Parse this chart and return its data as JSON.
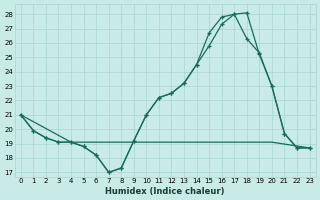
{
  "xlabel": "Humidex (Indice chaleur)",
  "bg_color": "#c8ebe8",
  "grid_color": "#a8d5d0",
  "line_color": "#1a6b5e",
  "xlim": [
    -0.5,
    23.5
  ],
  "ylim": [
    16.7,
    28.7
  ],
  "yticks": [
    17,
    18,
    19,
    20,
    21,
    22,
    23,
    24,
    25,
    26,
    27,
    28
  ],
  "xticks": [
    0,
    1,
    2,
    3,
    4,
    5,
    6,
    7,
    8,
    9,
    10,
    11,
    12,
    13,
    14,
    15,
    16,
    17,
    18,
    19,
    20,
    21,
    22,
    23
  ],
  "line1_x": [
    0,
    1,
    2,
    3,
    4,
    5,
    6,
    7,
    8,
    9,
    10,
    11,
    12,
    13,
    14,
    15,
    16,
    17,
    18,
    19,
    20,
    21,
    22,
    23
  ],
  "line1_y": [
    21.0,
    19.9,
    19.4,
    19.1,
    19.1,
    18.8,
    18.2,
    17.0,
    17.3,
    19.2,
    21.0,
    22.2,
    22.5,
    23.2,
    24.5,
    25.8,
    27.3,
    28.0,
    28.1,
    25.2,
    23.0,
    19.7,
    18.7,
    18.7
  ],
  "line2_x": [
    0,
    1,
    2,
    3,
    4,
    5,
    6,
    7,
    8,
    9,
    10,
    11,
    12,
    13,
    14,
    15,
    16,
    17,
    18,
    19,
    20,
    21,
    22,
    23
  ],
  "line2_y": [
    21.0,
    19.9,
    19.4,
    19.1,
    19.1,
    18.8,
    18.2,
    17.0,
    17.3,
    19.2,
    21.0,
    22.2,
    22.5,
    23.2,
    24.5,
    26.7,
    27.8,
    28.0,
    26.3,
    25.3,
    23.0,
    19.7,
    18.7,
    18.7
  ],
  "line3_x": [
    0,
    4,
    9,
    14,
    18,
    20,
    23
  ],
  "line3_y": [
    21.0,
    19.1,
    19.1,
    19.1,
    19.1,
    19.1,
    18.7
  ]
}
